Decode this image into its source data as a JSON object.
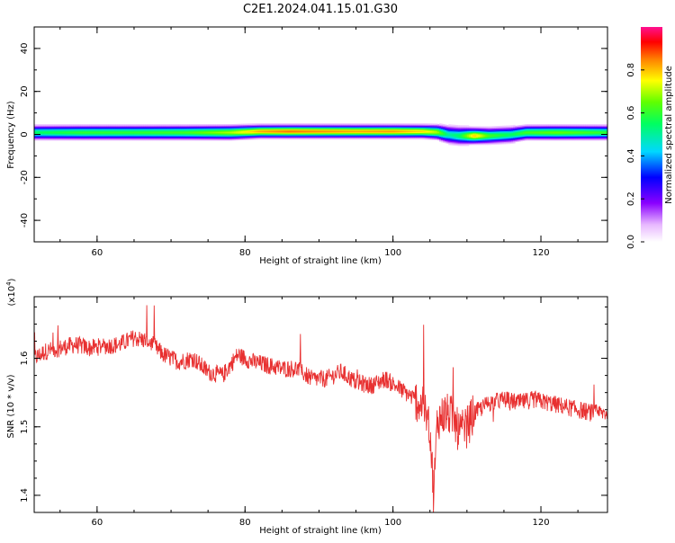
{
  "title": "C2E1.2024.041.15.01.G30",
  "colors": {
    "snr_line": "#e83030",
    "axis": "#000000",
    "background": "#ffffff"
  },
  "chart_data": [
    {
      "type": "heatmap",
      "xlabel": "Height of straight line (km)",
      "ylabel": "Frequency (Hz)",
      "xlim": [
        51.5,
        129
      ],
      "ylim": [
        -50,
        50
      ],
      "x_ticks": [
        "60",
        "80",
        "100",
        "120"
      ],
      "y_ticks": [
        "-40",
        "-20",
        "0",
        "20",
        "40"
      ],
      "colorbar": {
        "label": "Normalized spectral amplitude",
        "range": [
          0,
          1
        ],
        "ticks": [
          "0.0",
          "0.2",
          "0.4",
          "0.6",
          "0.8"
        ]
      },
      "ridge": {
        "x": [
          51.5,
          58,
          65,
          72,
          78,
          82,
          86,
          90,
          95,
          100,
          104,
          106,
          107.5,
          109,
          111,
          113,
          116,
          118,
          122,
          126,
          129
        ],
        "center_hz": [
          1,
          1,
          1,
          1,
          1,
          1.5,
          1.5,
          1.5,
          1.5,
          1.5,
          1.5,
          1.2,
          0,
          -0.5,
          -0.5,
          -0.5,
          0,
          1,
          1,
          1,
          1
        ],
        "peak_amplitude": [
          0.55,
          0.6,
          0.6,
          0.62,
          0.7,
          0.82,
          0.86,
          0.84,
          0.82,
          0.83,
          0.78,
          0.7,
          0.5,
          0.55,
          0.8,
          0.62,
          0.55,
          0.62,
          0.65,
          0.62,
          0.6
        ],
        "width_hz": [
          2,
          2,
          2,
          2,
          2,
          1.8,
          1.8,
          1.8,
          1.8,
          1.8,
          1.8,
          2,
          2.5,
          2.5,
          2.2,
          2.2,
          2.2,
          2,
          2,
          2,
          2
        ]
      }
    },
    {
      "type": "line",
      "xlabel": "Height of straight line (km)",
      "ylabel": "SNR (10 * v/v)",
      "y_multiplier": "(x10",
      "y_multiplier_exp": "4",
      "y_multiplier_close": ")",
      "xlim": [
        51.5,
        129
      ],
      "ylim": [
        13750,
        16900
      ],
      "x_ticks": [
        "60",
        "80",
        "100",
        "120"
      ],
      "y_ticks": [
        "1.4",
        "1.5",
        "1.6"
      ],
      "series": [
        {
          "x": [
            51.5,
            53,
            55,
            57,
            59,
            61,
            63,
            65,
            67,
            69,
            71,
            73,
            75,
            77,
            79,
            81,
            83,
            85,
            87,
            89,
            91,
            93,
            95,
            97,
            99,
            101,
            103,
            104,
            105,
            105.5,
            106,
            107,
            108,
            109,
            110,
            111,
            113,
            115,
            117,
            119,
            121,
            123,
            125,
            127,
            129
          ],
          "values": [
            16000,
            16100,
            16150,
            16200,
            16150,
            16180,
            16200,
            16300,
            16250,
            16050,
            15950,
            16000,
            15800,
            15750,
            16050,
            15950,
            15900,
            15850,
            15850,
            15700,
            15700,
            15800,
            15650,
            15600,
            15700,
            15550,
            15400,
            15300,
            15000,
            14000,
            15100,
            15200,
            15150,
            14900,
            15000,
            15200,
            15350,
            15400,
            15350,
            15400,
            15350,
            15300,
            15250,
            15200,
            15200
          ]
        }
      ]
    }
  ]
}
